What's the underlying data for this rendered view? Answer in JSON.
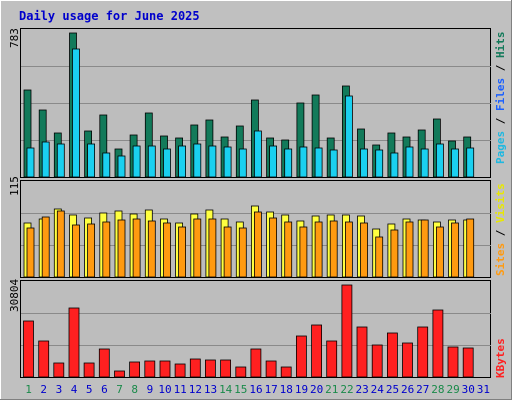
{
  "title": "Daily usage for June 2025",
  "colors": {
    "background": "#c0c0c0",
    "panel": "#bdbdbd",
    "grid": "#8a8a8a",
    "hits": "#127a5a",
    "files": "#1ad0f0",
    "pages": "#20b8e0",
    "visits": "#ffff40",
    "sites": "#ff9a10",
    "kbytes": "#ff2020",
    "title": "#0000cc",
    "weekend_day": "#1a8a4a",
    "weekday": "#0000cc"
  },
  "side_labels": {
    "top": [
      {
        "text": "Pages",
        "color": "#20b8e0"
      },
      {
        "text": " / ",
        "color": "#000000"
      },
      {
        "text": "Files",
        "color": "#1a60ff"
      },
      {
        "text": " / ",
        "color": "#000000"
      },
      {
        "text": "Hits",
        "color": "#127a5a"
      }
    ],
    "middle": [
      {
        "text": "Sites",
        "color": "#ff9a10"
      },
      {
        "text": " / ",
        "color": "#000000"
      },
      {
        "text": "Visits",
        "color": "#e8e800"
      }
    ],
    "bottom": [
      {
        "text": "KBytes",
        "color": "#ff2020"
      }
    ]
  },
  "chart_data": [
    {
      "type": "bar",
      "panel": "hits_files",
      "ymax_label": "783",
      "ylim": [
        0,
        783
      ],
      "categories": [
        "1",
        "2",
        "3",
        "4",
        "5",
        "6",
        "7",
        "8",
        "9",
        "10",
        "11",
        "12",
        "13",
        "14",
        "15",
        "16",
        "17",
        "18",
        "19",
        "20",
        "21",
        "22",
        "23",
        "24",
        "25",
        "26",
        "27",
        "28",
        "29",
        "30"
      ],
      "series": [
        {
          "name": "Hits",
          "values": [
            474,
            366,
            240,
            783,
            252,
            339,
            153,
            228,
            350,
            225,
            210,
            282,
            309,
            218,
            276,
            418,
            210,
            202,
            400,
            446,
            210,
            497,
            263,
            174,
            240,
            218,
            258,
            316,
            194,
            219
          ]
        },
        {
          "name": "Files",
          "values": [
            160,
            193,
            178,
            694,
            181,
            131,
            113,
            168,
            170,
            150,
            170,
            180,
            170,
            165,
            150,
            248,
            170,
            150,
            165,
            155,
            145,
            440,
            150,
            145,
            130,
            165,
            150,
            180,
            150,
            160
          ]
        }
      ]
    },
    {
      "type": "bar",
      "panel": "visits_sites",
      "ymax_label": "115",
      "ylim": [
        0,
        115
      ],
      "categories": [
        "1",
        "2",
        "3",
        "4",
        "5",
        "6",
        "7",
        "8",
        "9",
        "10",
        "11",
        "12",
        "13",
        "14",
        "15",
        "16",
        "17",
        "18",
        "19",
        "20",
        "21",
        "22",
        "23",
        "24",
        "25",
        "26",
        "27",
        "28",
        "29",
        "30"
      ],
      "series": [
        {
          "name": "Visits",
          "values": [
            67,
            73,
            85,
            77,
            74,
            80,
            82,
            79,
            84,
            73,
            68,
            79,
            84,
            73,
            69,
            89,
            81,
            77,
            70,
            76,
            78,
            78,
            76,
            60,
            66,
            72,
            71,
            69,
            71,
            71
          ]
        },
        {
          "name": "Sites",
          "values": [
            61,
            75,
            82,
            65,
            66,
            69,
            71,
            73,
            70,
            67,
            63,
            72,
            73,
            63,
            61,
            81,
            74,
            69,
            63,
            69,
            70,
            69,
            67,
            50,
            59,
            69,
            71,
            62,
            68,
            72
          ]
        }
      ]
    },
    {
      "type": "bar",
      "panel": "kbytes",
      "ymax_label": "30804",
      "ylim": [
        0,
        30804
      ],
      "categories": [
        "1",
        "2",
        "3",
        "4",
        "5",
        "6",
        "7",
        "8",
        "9",
        "10",
        "11",
        "12",
        "13",
        "14",
        "15",
        "16",
        "17",
        "18",
        "19",
        "20",
        "21",
        "22",
        "23",
        "24",
        "25",
        "26",
        "27",
        "28",
        "29",
        "30"
      ],
      "series": [
        {
          "name": "KBytes",
          "values": [
            18600,
            12000,
            4600,
            23200,
            4600,
            9400,
            2000,
            5000,
            5200,
            5200,
            4300,
            6100,
            5800,
            5600,
            3200,
            9400,
            5400,
            3200,
            13600,
            17300,
            12000,
            30804,
            16800,
            10600,
            14800,
            11400,
            16900,
            22500,
            10200,
            9800
          ]
        }
      ]
    }
  ],
  "day_labels": [
    {
      "text": "1",
      "weekend": true
    },
    {
      "text": "2",
      "weekend": false
    },
    {
      "text": "3",
      "weekend": false
    },
    {
      "text": "4",
      "weekend": false
    },
    {
      "text": "5",
      "weekend": false
    },
    {
      "text": "6",
      "weekend": false
    },
    {
      "text": "7",
      "weekend": true
    },
    {
      "text": "8",
      "weekend": true
    },
    {
      "text": "9",
      "weekend": false
    },
    {
      "text": "10",
      "weekend": false
    },
    {
      "text": "11",
      "weekend": false
    },
    {
      "text": "12",
      "weekend": false
    },
    {
      "text": "13",
      "weekend": false
    },
    {
      "text": "14",
      "weekend": true
    },
    {
      "text": "15",
      "weekend": true
    },
    {
      "text": "16",
      "weekend": false
    },
    {
      "text": "17",
      "weekend": false
    },
    {
      "text": "18",
      "weekend": false
    },
    {
      "text": "19",
      "weekend": false
    },
    {
      "text": "20",
      "weekend": false
    },
    {
      "text": "21",
      "weekend": true
    },
    {
      "text": "22",
      "weekend": true
    },
    {
      "text": "23",
      "weekend": false
    },
    {
      "text": "24",
      "weekend": false
    },
    {
      "text": "25",
      "weekend": false
    },
    {
      "text": "26",
      "weekend": false
    },
    {
      "text": "27",
      "weekend": false
    },
    {
      "text": "28",
      "weekend": true
    },
    {
      "text": "29",
      "weekend": true
    },
    {
      "text": "30",
      "weekend": false
    },
    {
      "text": "31",
      "weekend": false
    }
  ]
}
